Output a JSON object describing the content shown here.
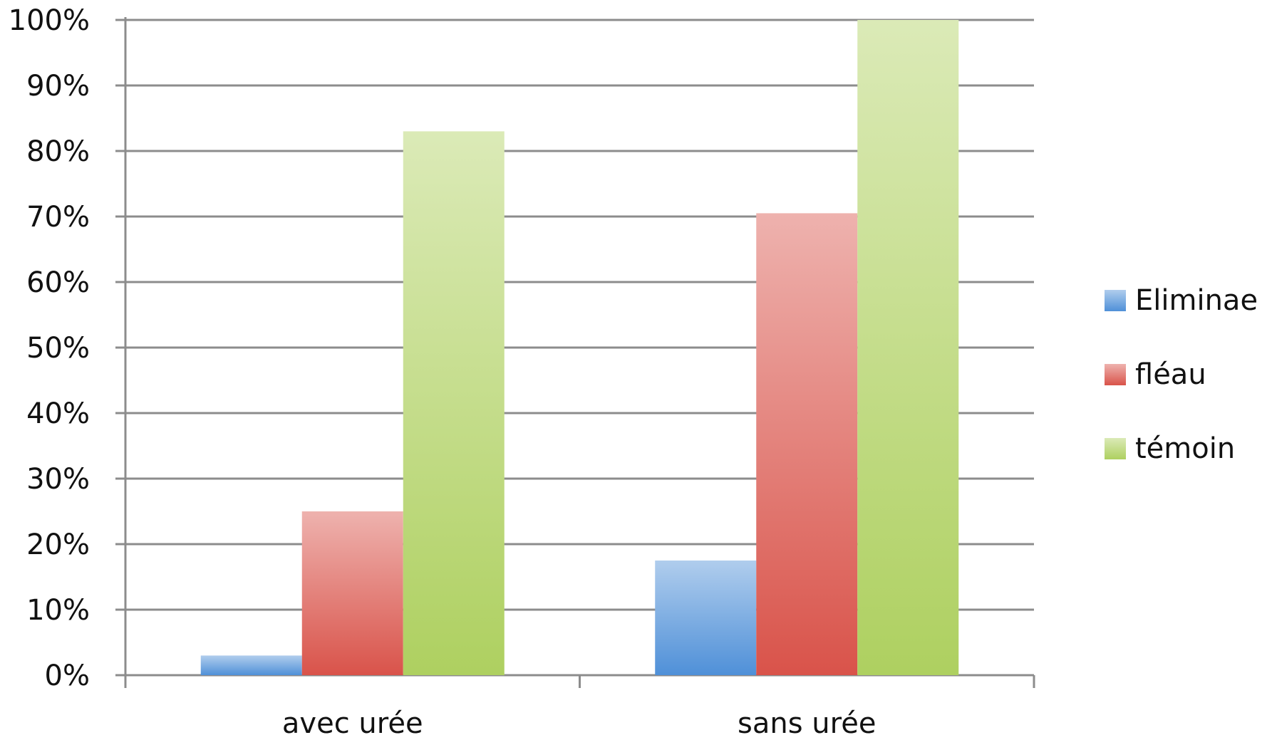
{
  "chart_data": {
    "type": "bar",
    "categories": [
      "avec urée",
      "sans urée"
    ],
    "series": [
      {
        "name": "Eliminae",
        "color": "#4f90d8",
        "values": [
          3,
          17.5
        ]
      },
      {
        "name": "fléau",
        "color": "#d9534a",
        "values": [
          25,
          70.5
        ]
      },
      {
        "name": "témoin",
        "color": "#aed060",
        "values": [
          83,
          100
        ]
      }
    ],
    "ylim": [
      0,
      100
    ],
    "yticks": [
      {
        "value": 0,
        "label": "0%"
      },
      {
        "value": 10,
        "label": "10%"
      },
      {
        "value": 20,
        "label": "20%"
      },
      {
        "value": 30,
        "label": "30%"
      },
      {
        "value": 40,
        "label": "40%"
      },
      {
        "value": 50,
        "label": "50%"
      },
      {
        "value": 60,
        "label": "60%"
      },
      {
        "value": 70,
        "label": "70%"
      },
      {
        "value": 80,
        "label": "80%"
      },
      {
        "value": 90,
        "label": "90%"
      },
      {
        "value": 100,
        "label": "100%"
      }
    ],
    "grid": true,
    "legend": "right"
  }
}
